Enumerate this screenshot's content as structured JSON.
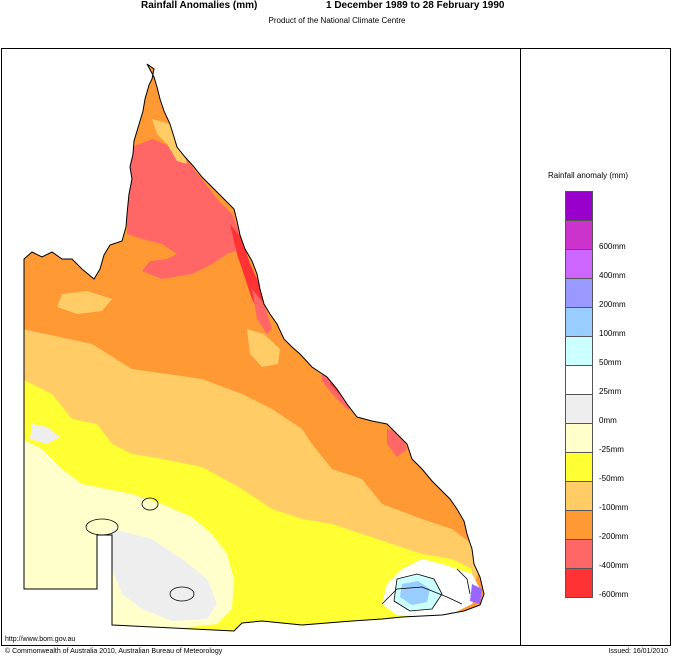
{
  "header": {
    "title": "Rainfall Anomalies (mm)",
    "period": "1 December 1989 to 28 February 1990",
    "subtitle": "Product of the National Climate Centre"
  },
  "legend": {
    "title": "Rainfall anomaly (mm)",
    "classes": [
      {
        "color": "#9900cc"
      },
      {
        "label": "600mm",
        "color": "#cc33cc"
      },
      {
        "label": "400mm",
        "color": "#cc66ff"
      },
      {
        "label": "200mm",
        "color": "#9999ff"
      },
      {
        "label": "100mm",
        "color": "#99ccff"
      },
      {
        "label": "50mm",
        "color": "#ccffff"
      },
      {
        "label": "25mm",
        "color": "#ffffff"
      },
      {
        "label": "0mm",
        "color": "#eeeeee"
      },
      {
        "label": "-25mm",
        "color": "#ffffcc"
      },
      {
        "label": "-50mm",
        "color": "#ffff33"
      },
      {
        "label": "-100mm",
        "color": "#ffcc66"
      },
      {
        "label": "-200mm",
        "color": "#ff9933"
      },
      {
        "label": "-400mm",
        "color": "#ff6666"
      },
      {
        "label": "-600mm",
        "color": "#ff3333"
      }
    ]
  },
  "footer": {
    "url": "http://www.bom.gov.au",
    "copyright": "© Commonwealth of Australia 2010, Australian Bureau of Meteorology",
    "issued": "Issued: 16/01/2010"
  }
}
